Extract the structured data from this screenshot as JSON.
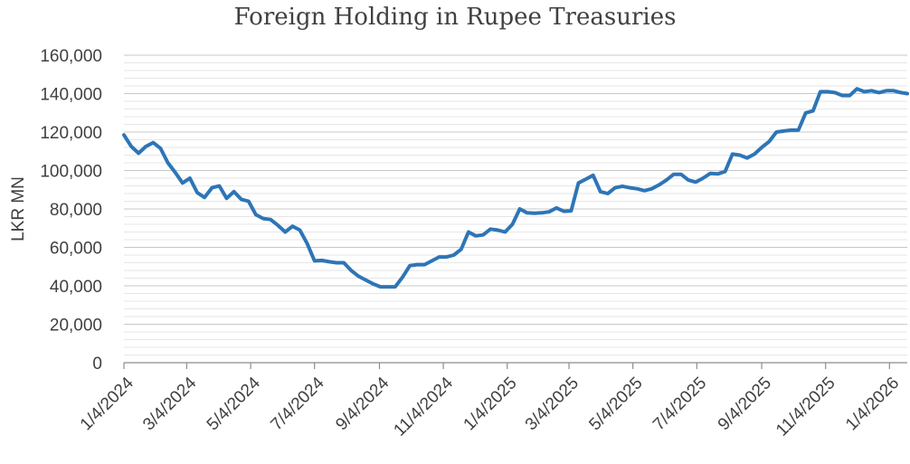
{
  "chart_data": {
    "type": "line",
    "title": "Foreign Holding in Rupee Treasuries",
    "ylabel": "LKR MN",
    "xlabel": "",
    "ylim": [
      0,
      160000
    ],
    "yticks": [
      "0",
      "20,000",
      "40,000",
      "60,000",
      "80,000",
      "100,000",
      "120,000",
      "140,000",
      "160,000"
    ],
    "ytick_values": [
      0,
      20000,
      40000,
      60000,
      80000,
      100000,
      120000,
      140000,
      160000
    ],
    "xticks": [
      "1/4/2024",
      "3/4/2024",
      "5/4/2024",
      "7/4/2024",
      "9/4/2024",
      "11/4/2024",
      "1/4/2025",
      "3/4/2025",
      "5/4/2025",
      "7/4/2025",
      "9/4/2025",
      "11/4/2025",
      "1/4/2026"
    ],
    "xtick_dates": [
      "2024-01-04",
      "2024-03-04",
      "2024-05-04",
      "2024-07-04",
      "2024-09-04",
      "2024-11-04",
      "2025-01-04",
      "2025-03-04",
      "2025-05-04",
      "2025-07-04",
      "2025-09-04",
      "2025-11-04",
      "2026-01-04"
    ],
    "xlim": [
      "2024-01-04",
      "2026-01-21"
    ],
    "grid": true,
    "minor_grid": true,
    "line_color": "#2E75B6",
    "series": [
      {
        "x": [
          "2024-01-04",
          "2024-01-11",
          "2024-01-18",
          "2024-01-25",
          "2024-02-01",
          "2024-02-08",
          "2024-02-15",
          "2024-02-22",
          "2024-02-29",
          "2024-03-07",
          "2024-03-14",
          "2024-03-21",
          "2024-03-28",
          "2024-04-04",
          "2024-04-11",
          "2024-04-18",
          "2024-04-25",
          "2024-05-02",
          "2024-05-09",
          "2024-05-16",
          "2024-05-23",
          "2024-05-30",
          "2024-06-06",
          "2024-06-13",
          "2024-06-20",
          "2024-06-27",
          "2024-07-04",
          "2024-07-11",
          "2024-07-18",
          "2024-07-25",
          "2024-08-01",
          "2024-08-08",
          "2024-08-15",
          "2024-08-22",
          "2024-08-29",
          "2024-09-05",
          "2024-09-12",
          "2024-09-19",
          "2024-09-26",
          "2024-10-03",
          "2024-10-10",
          "2024-10-17",
          "2024-10-24",
          "2024-10-31",
          "2024-11-07",
          "2024-11-14",
          "2024-11-21",
          "2024-11-28",
          "2024-12-05",
          "2024-12-12",
          "2024-12-19",
          "2024-12-26",
          "2025-01-02",
          "2025-01-09",
          "2025-01-16",
          "2025-01-23",
          "2025-01-30",
          "2025-02-06",
          "2025-02-13",
          "2025-02-20",
          "2025-02-27",
          "2025-03-06",
          "2025-03-13",
          "2025-03-20",
          "2025-03-27",
          "2025-04-03",
          "2025-04-10",
          "2025-04-17",
          "2025-04-24",
          "2025-05-01",
          "2025-05-08",
          "2025-05-15",
          "2025-05-22",
          "2025-05-29",
          "2025-06-05",
          "2025-06-12",
          "2025-06-19",
          "2025-06-26",
          "2025-07-03",
          "2025-07-10",
          "2025-07-17",
          "2025-07-24",
          "2025-07-31",
          "2025-08-07",
          "2025-08-14",
          "2025-08-21",
          "2025-08-28",
          "2025-09-04",
          "2025-09-11",
          "2025-09-18",
          "2025-09-25",
          "2025-10-02",
          "2025-10-09",
          "2025-10-16",
          "2025-10-23",
          "2025-10-30",
          "2025-11-06",
          "2025-11-13",
          "2025-11-20",
          "2025-11-27",
          "2025-12-04",
          "2025-12-11",
          "2025-12-18",
          "2025-12-25",
          "2026-01-01",
          "2026-01-08",
          "2026-01-15",
          "2026-01-21"
        ],
        "values": [
          118500,
          112500,
          109000,
          112500,
          114500,
          111500,
          104000,
          99000,
          93500,
          96000,
          88500,
          86000,
          91000,
          92000,
          85500,
          89000,
          85000,
          84000,
          77000,
          75000,
          74500,
          71500,
          68000,
          71000,
          69000,
          62000,
          53000,
          53200,
          52500,
          52000,
          52000,
          48000,
          45000,
          43000,
          41000,
          39500,
          39500,
          39500,
          44500,
          50500,
          51000,
          51000,
          53000,
          55000,
          55000,
          56000,
          59000,
          68000,
          66000,
          66500,
          69500,
          69000,
          68000,
          72000,
          80000,
          78000,
          77800,
          78000,
          78500,
          80500,
          78800,
          79000,
          93500,
          95500,
          97500,
          89000,
          88000,
          91000,
          91800,
          91000,
          90500,
          89500,
          90500,
          92500,
          95000,
          98000,
          98000,
          95000,
          94000,
          96000,
          98500,
          98200,
          99500,
          108500,
          108000,
          106500,
          108500,
          112000,
          115000,
          120000,
          120500,
          121000,
          121000,
          130000,
          131000,
          141000,
          141000,
          140500,
          139000,
          139000,
          142500,
          141000,
          141500,
          140500,
          141500,
          141500,
          140500,
          140000
        ]
      }
    ]
  }
}
